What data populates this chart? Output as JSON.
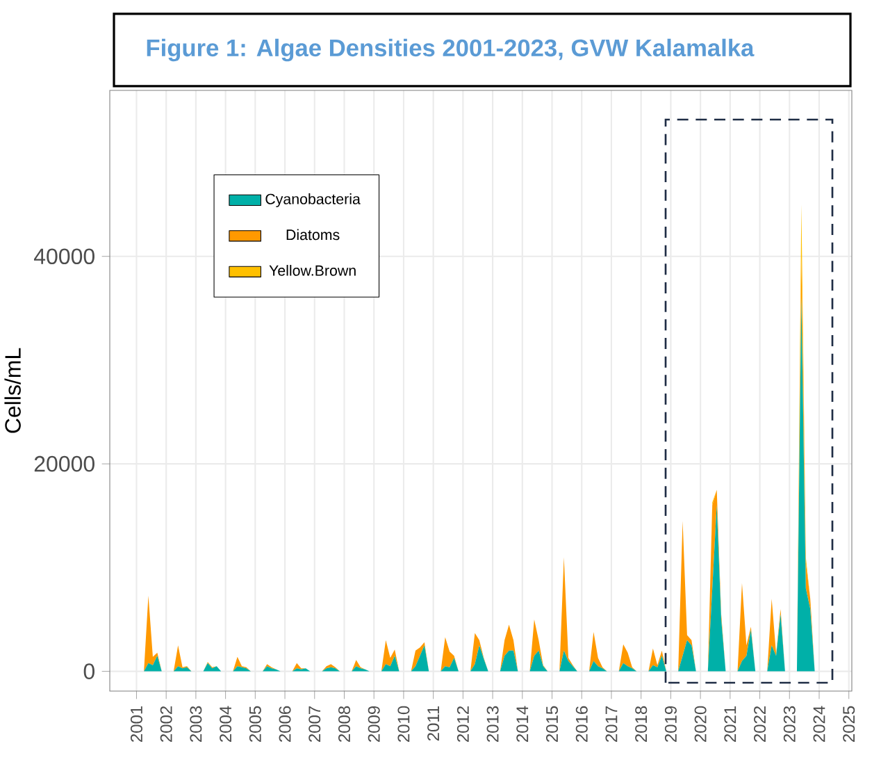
{
  "chart_data": {
    "type": "area",
    "stacked": true,
    "title": "Figure 1: Algae Densities 2001-2023, GVW Kalamalka",
    "ylabel": "Cells/mL",
    "x": [
      2001.25,
      2001.4,
      2001.55,
      2001.7,
      2001.85,
      2002.25,
      2002.4,
      2002.55,
      2002.7,
      2002.85,
      2003.25,
      2003.4,
      2003.55,
      2003.7,
      2003.85,
      2004.25,
      2004.4,
      2004.55,
      2004.7,
      2004.85,
      2005.25,
      2005.4,
      2005.55,
      2005.7,
      2005.85,
      2006.25,
      2006.4,
      2006.55,
      2006.7,
      2006.85,
      2007.25,
      2007.4,
      2007.55,
      2007.7,
      2007.85,
      2008.25,
      2008.4,
      2008.55,
      2008.7,
      2008.85,
      2009.25,
      2009.4,
      2009.55,
      2009.7,
      2009.85,
      2010.25,
      2010.4,
      2010.55,
      2010.7,
      2010.85,
      2011.25,
      2011.4,
      2011.55,
      2011.7,
      2011.85,
      2012.25,
      2012.4,
      2012.55,
      2012.7,
      2012.85,
      2013.25,
      2013.4,
      2013.55,
      2013.7,
      2013.85,
      2014.25,
      2014.4,
      2014.55,
      2014.7,
      2014.85,
      2015.25,
      2015.4,
      2015.55,
      2015.7,
      2015.85,
      2016.25,
      2016.4,
      2016.55,
      2016.7,
      2016.85,
      2017.25,
      2017.4,
      2017.55,
      2017.7,
      2017.85,
      2018.25,
      2018.4,
      2018.55,
      2018.7,
      2018.85,
      2019.25,
      2019.4,
      2019.55,
      2019.7,
      2019.85,
      2020.25,
      2020.4,
      2020.55,
      2020.7,
      2020.85,
      2021.25,
      2021.4,
      2021.55,
      2021.7,
      2021.85,
      2022.25,
      2022.4,
      2022.55,
      2022.7,
      2022.85,
      2023.25,
      2023.4,
      2023.55,
      2023.7,
      2023.85
    ],
    "series": [
      {
        "name": "Cyanobacteria",
        "color": "#00b0a8",
        "values": [
          0,
          800,
          600,
          1500,
          0,
          0,
          500,
          300,
          400,
          0,
          0,
          800,
          300,
          500,
          0,
          0,
          500,
          400,
          300,
          0,
          0,
          500,
          300,
          200,
          0,
          0,
          300,
          200,
          300,
          0,
          0,
          300,
          400,
          300,
          0,
          0,
          500,
          300,
          200,
          0,
          0,
          700,
          500,
          1500,
          0,
          0,
          500,
          1500,
          2500,
          0,
          0,
          500,
          400,
          1300,
          0,
          0,
          700,
          2500,
          1200,
          0,
          0,
          1500,
          2000,
          2000,
          0,
          0,
          1500,
          2000,
          500,
          0,
          0,
          2000,
          1000,
          500,
          0,
          0,
          1000,
          500,
          300,
          0,
          0,
          800,
          500,
          300,
          0,
          0,
          600,
          400,
          1500,
          0,
          0,
          1500,
          3000,
          2500,
          0,
          0,
          8000,
          16000,
          5000,
          0,
          0,
          1000,
          1500,
          4000,
          0,
          0,
          2500,
          1500,
          5500,
          0,
          0,
          36000,
          8000,
          6000,
          0
        ]
      },
      {
        "name": "Diatoms",
        "color": "#ff9900",
        "values": [
          0,
          6500,
          800,
          300,
          0,
          0,
          2000,
          100,
          100,
          0,
          0,
          100,
          100,
          0,
          0,
          0,
          900,
          100,
          100,
          0,
          0,
          200,
          100,
          0,
          0,
          0,
          500,
          100,
          0,
          0,
          0,
          200,
          300,
          100,
          0,
          0,
          600,
          100,
          0,
          0,
          0,
          2300,
          800,
          600,
          0,
          0,
          1500,
          800,
          300,
          0,
          0,
          2800,
          1500,
          200,
          0,
          0,
          3000,
          500,
          100,
          0,
          0,
          1500,
          2500,
          1000,
          0,
          0,
          3500,
          1000,
          100,
          0,
          0,
          9000,
          300,
          100,
          0,
          0,
          2800,
          800,
          100,
          0,
          0,
          1800,
          1300,
          100,
          0,
          0,
          1600,
          200,
          500,
          0,
          0,
          13000,
          500,
          500,
          0,
          0,
          8000,
          1500,
          500,
          0,
          0,
          7500,
          1000,
          300,
          0,
          0,
          4500,
          200,
          500,
          0,
          0,
          4000,
          2500,
          1000,
          0
        ]
      },
      {
        "name": "Yellow.Brown",
        "color": "#ffc000",
        "values": [
          0,
          0,
          0,
          0,
          0,
          0,
          0,
          0,
          0,
          0,
          0,
          0,
          0,
          0,
          0,
          0,
          0,
          0,
          0,
          0,
          0,
          0,
          0,
          0,
          0,
          0,
          0,
          0,
          0,
          0,
          0,
          0,
          0,
          0,
          0,
          0,
          0,
          0,
          0,
          0,
          0,
          0,
          0,
          0,
          0,
          0,
          0,
          0,
          0,
          0,
          0,
          0,
          0,
          0,
          0,
          0,
          0,
          0,
          0,
          0,
          0,
          0,
          0,
          0,
          0,
          0,
          0,
          0,
          0,
          0,
          0,
          0,
          0,
          0,
          0,
          0,
          0,
          0,
          0,
          0,
          0,
          0,
          0,
          0,
          0,
          0,
          0,
          0,
          0,
          0,
          0,
          0,
          0,
          0,
          0,
          0,
          300,
          0,
          0,
          0,
          0,
          0,
          0,
          0,
          0,
          0,
          0,
          0,
          0,
          0,
          0,
          5000,
          500,
          0,
          0
        ]
      }
    ],
    "xlim": [
      2000.1,
      2025.1
    ],
    "ylim": [
      -1900,
      56000
    ],
    "xticks": [
      2001,
      2002,
      2003,
      2004,
      2005,
      2006,
      2007,
      2008,
      2009,
      2010,
      2011,
      2012,
      2013,
      2014,
      2015,
      2016,
      2017,
      2018,
      2019,
      2020,
      2021,
      2022,
      2023,
      2024,
      2025
    ],
    "yticks": [
      0,
      20000,
      40000
    ],
    "grid": true,
    "legend": "top left"
  }
}
